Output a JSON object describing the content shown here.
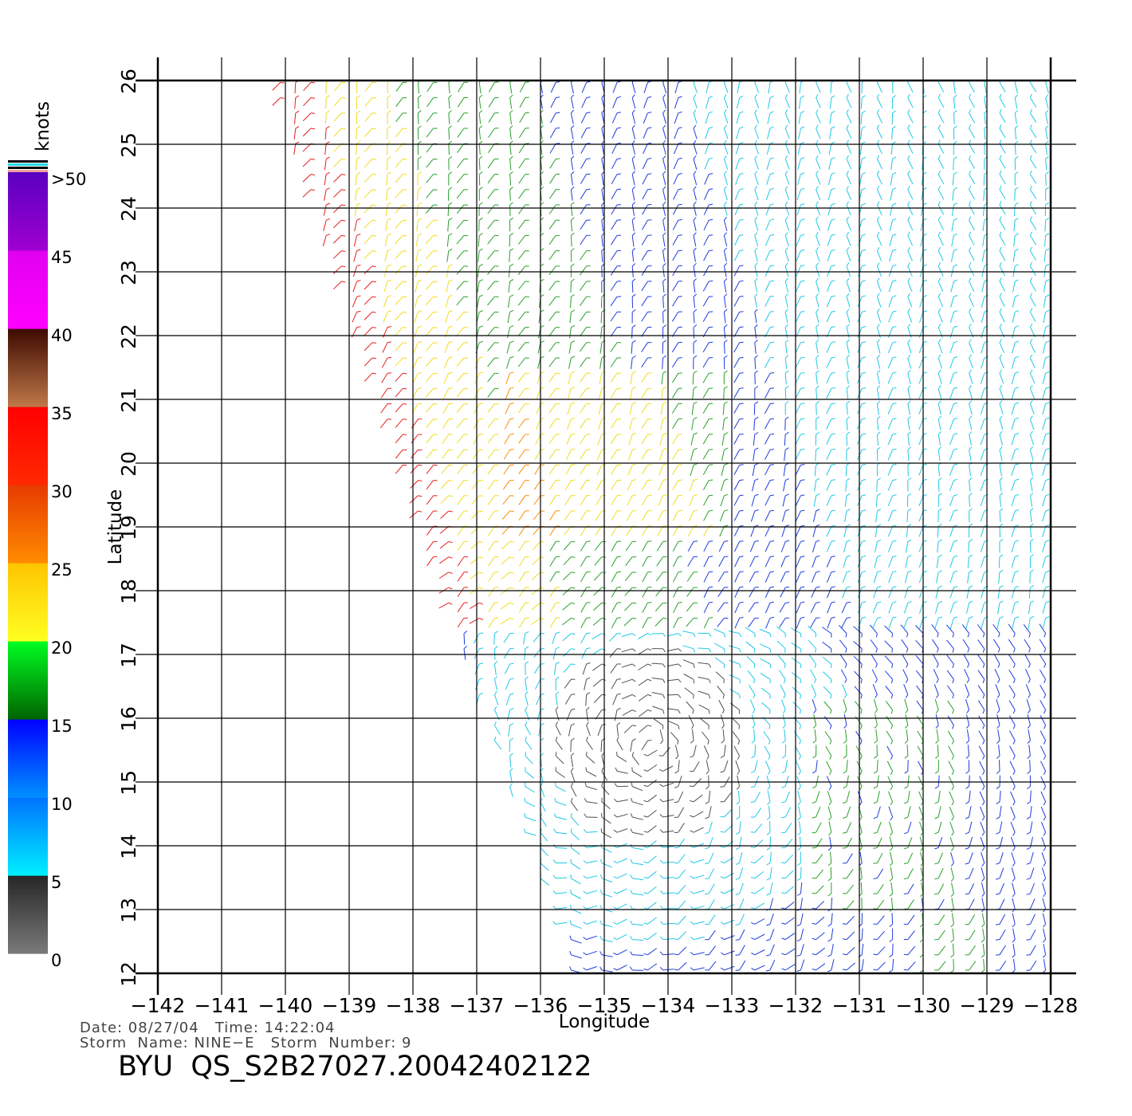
{
  "axes": {
    "x_title": "Longitude",
    "y_title": "Latitude",
    "x_ticks": [
      "−142",
      "−141",
      "−140",
      "−139",
      "−138",
      "−137",
      "−136",
      "−135",
      "−134",
      "−133",
      "−132",
      "−131",
      "−130",
      "−129",
      "−128"
    ],
    "y_ticks": [
      "12",
      "13",
      "14",
      "15",
      "16",
      "17",
      "18",
      "19",
      "20",
      "21",
      "22",
      "23",
      "24",
      "25",
      "26"
    ],
    "lon_range": [
      -142,
      -128
    ],
    "lat_range": [
      12,
      26
    ],
    "grid": true
  },
  "colorbar": {
    "unit": "knots",
    "labels": [
      ">50",
      "45",
      "40",
      "35",
      "30",
      "25",
      "20",
      "15",
      "10",
      "5",
      "0"
    ],
    "bands": [
      {
        "range": "0-5",
        "bottom": "#7a7a7a",
        "top": "#262626"
      },
      {
        "range": "5-10",
        "bottom": "#00f0ff",
        "top": "#0072ff"
      },
      {
        "range": "10-15",
        "bottom": "#0090ff",
        "top": "#0000ff"
      },
      {
        "range": "15-20",
        "bottom": "#006400",
        "top": "#00ff22"
      },
      {
        "range": "20-25",
        "bottom": "#ffff22",
        "top": "#ffc400"
      },
      {
        "range": "25-30",
        "bottom": "#ff8c00",
        "top": "#e63a00"
      },
      {
        "range": "30-35",
        "bottom": "#ff2a00",
        "top": "#ff0000"
      },
      {
        "range": "35-40",
        "bottom": "#c07848",
        "top": "#3c0a00"
      },
      {
        "range": "40-45",
        "bottom": "#ff00ff",
        "top": "#e000f0"
      },
      {
        "range": "45-50",
        "bottom": "#a000d0",
        "top": "#5a00c0"
      }
    ]
  },
  "info": {
    "date_line": "Date: 08/27/04   Time: 14:22:04",
    "storm_line": "Storm  Name: NINE−E   Storm  Number: 9"
  },
  "title": "BYU  QS_S2B27027.20042402122",
  "colors": {
    "grid": "#000000",
    "speed_calm": "#505050",
    "speed_5_10": "#1ec8e6",
    "speed_10_15": "#1e3cdc",
    "speed_15_20": "#28a028",
    "speed_20_25": "#f0dc1e",
    "speed_25_30": "#ff8c00",
    "speed_30_35": "#e61e1e"
  }
}
